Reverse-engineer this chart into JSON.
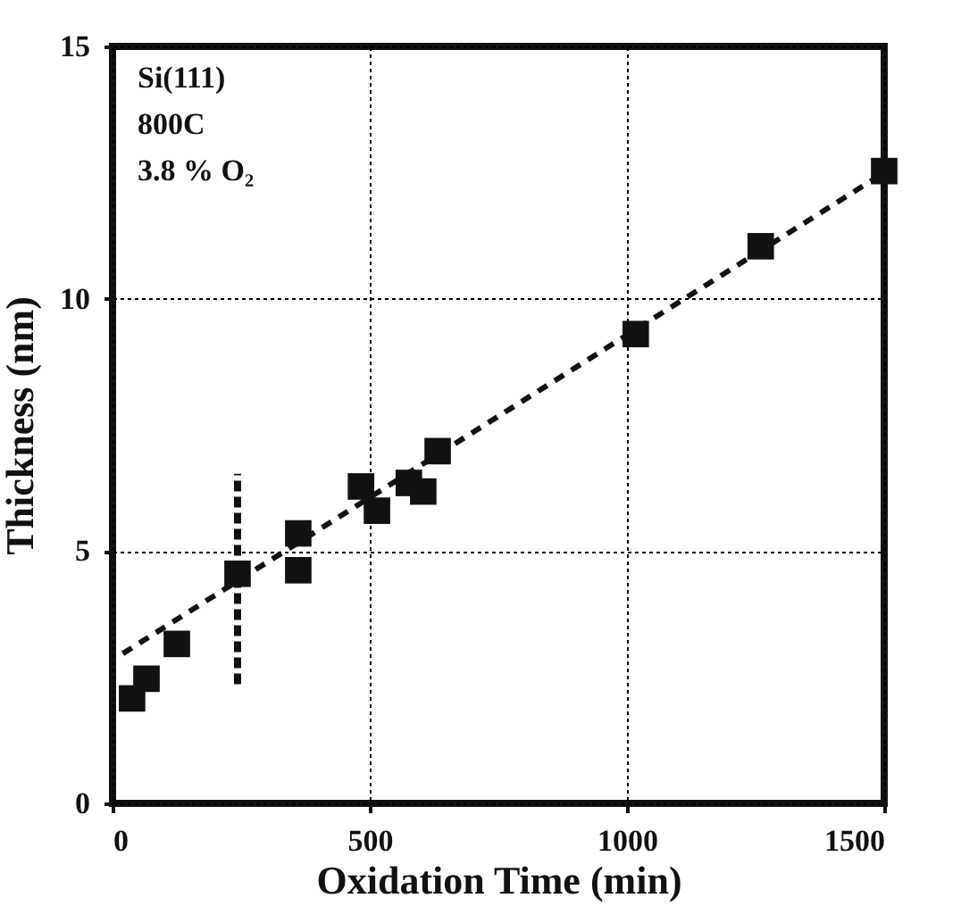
{
  "chart_data": {
    "type": "scatter",
    "xlabel": "Oxidation Time (min)",
    "ylabel": "Thickness (nm)",
    "annotations": [
      "Si(111)",
      "800C",
      "3.8 % O₂"
    ],
    "xlim": [
      0,
      1500
    ],
    "ylim": [
      0,
      15
    ],
    "xticks": [
      0,
      500,
      1000,
      1500
    ],
    "yticks": [
      0,
      5,
      10,
      15
    ],
    "grid": true,
    "series": [
      {
        "color": "#111111",
        "marker": "square",
        "x": [
          38,
          66,
          125,
          243,
          361,
          361,
          483,
          514,
          576,
          604,
          632,
          1017,
          1260,
          1500
        ],
        "values": [
          2.08,
          2.47,
          3.16,
          4.55,
          5.35,
          4.62,
          6.28,
          5.8,
          6.35,
          6.18,
          6.98,
          9.3,
          11.04,
          12.53
        ],
        "errors": [
          null,
          null,
          null,
          [
            2.36,
            6.53
          ],
          null,
          null,
          null,
          null,
          null,
          null,
          null,
          null,
          null,
          null
        ]
      },
      {
        "type": "line",
        "color": "#111111",
        "line_style": "dashed",
        "x": [
          20,
          1500
        ],
        "values": [
          2.97,
          12.5
        ]
      }
    ]
  }
}
